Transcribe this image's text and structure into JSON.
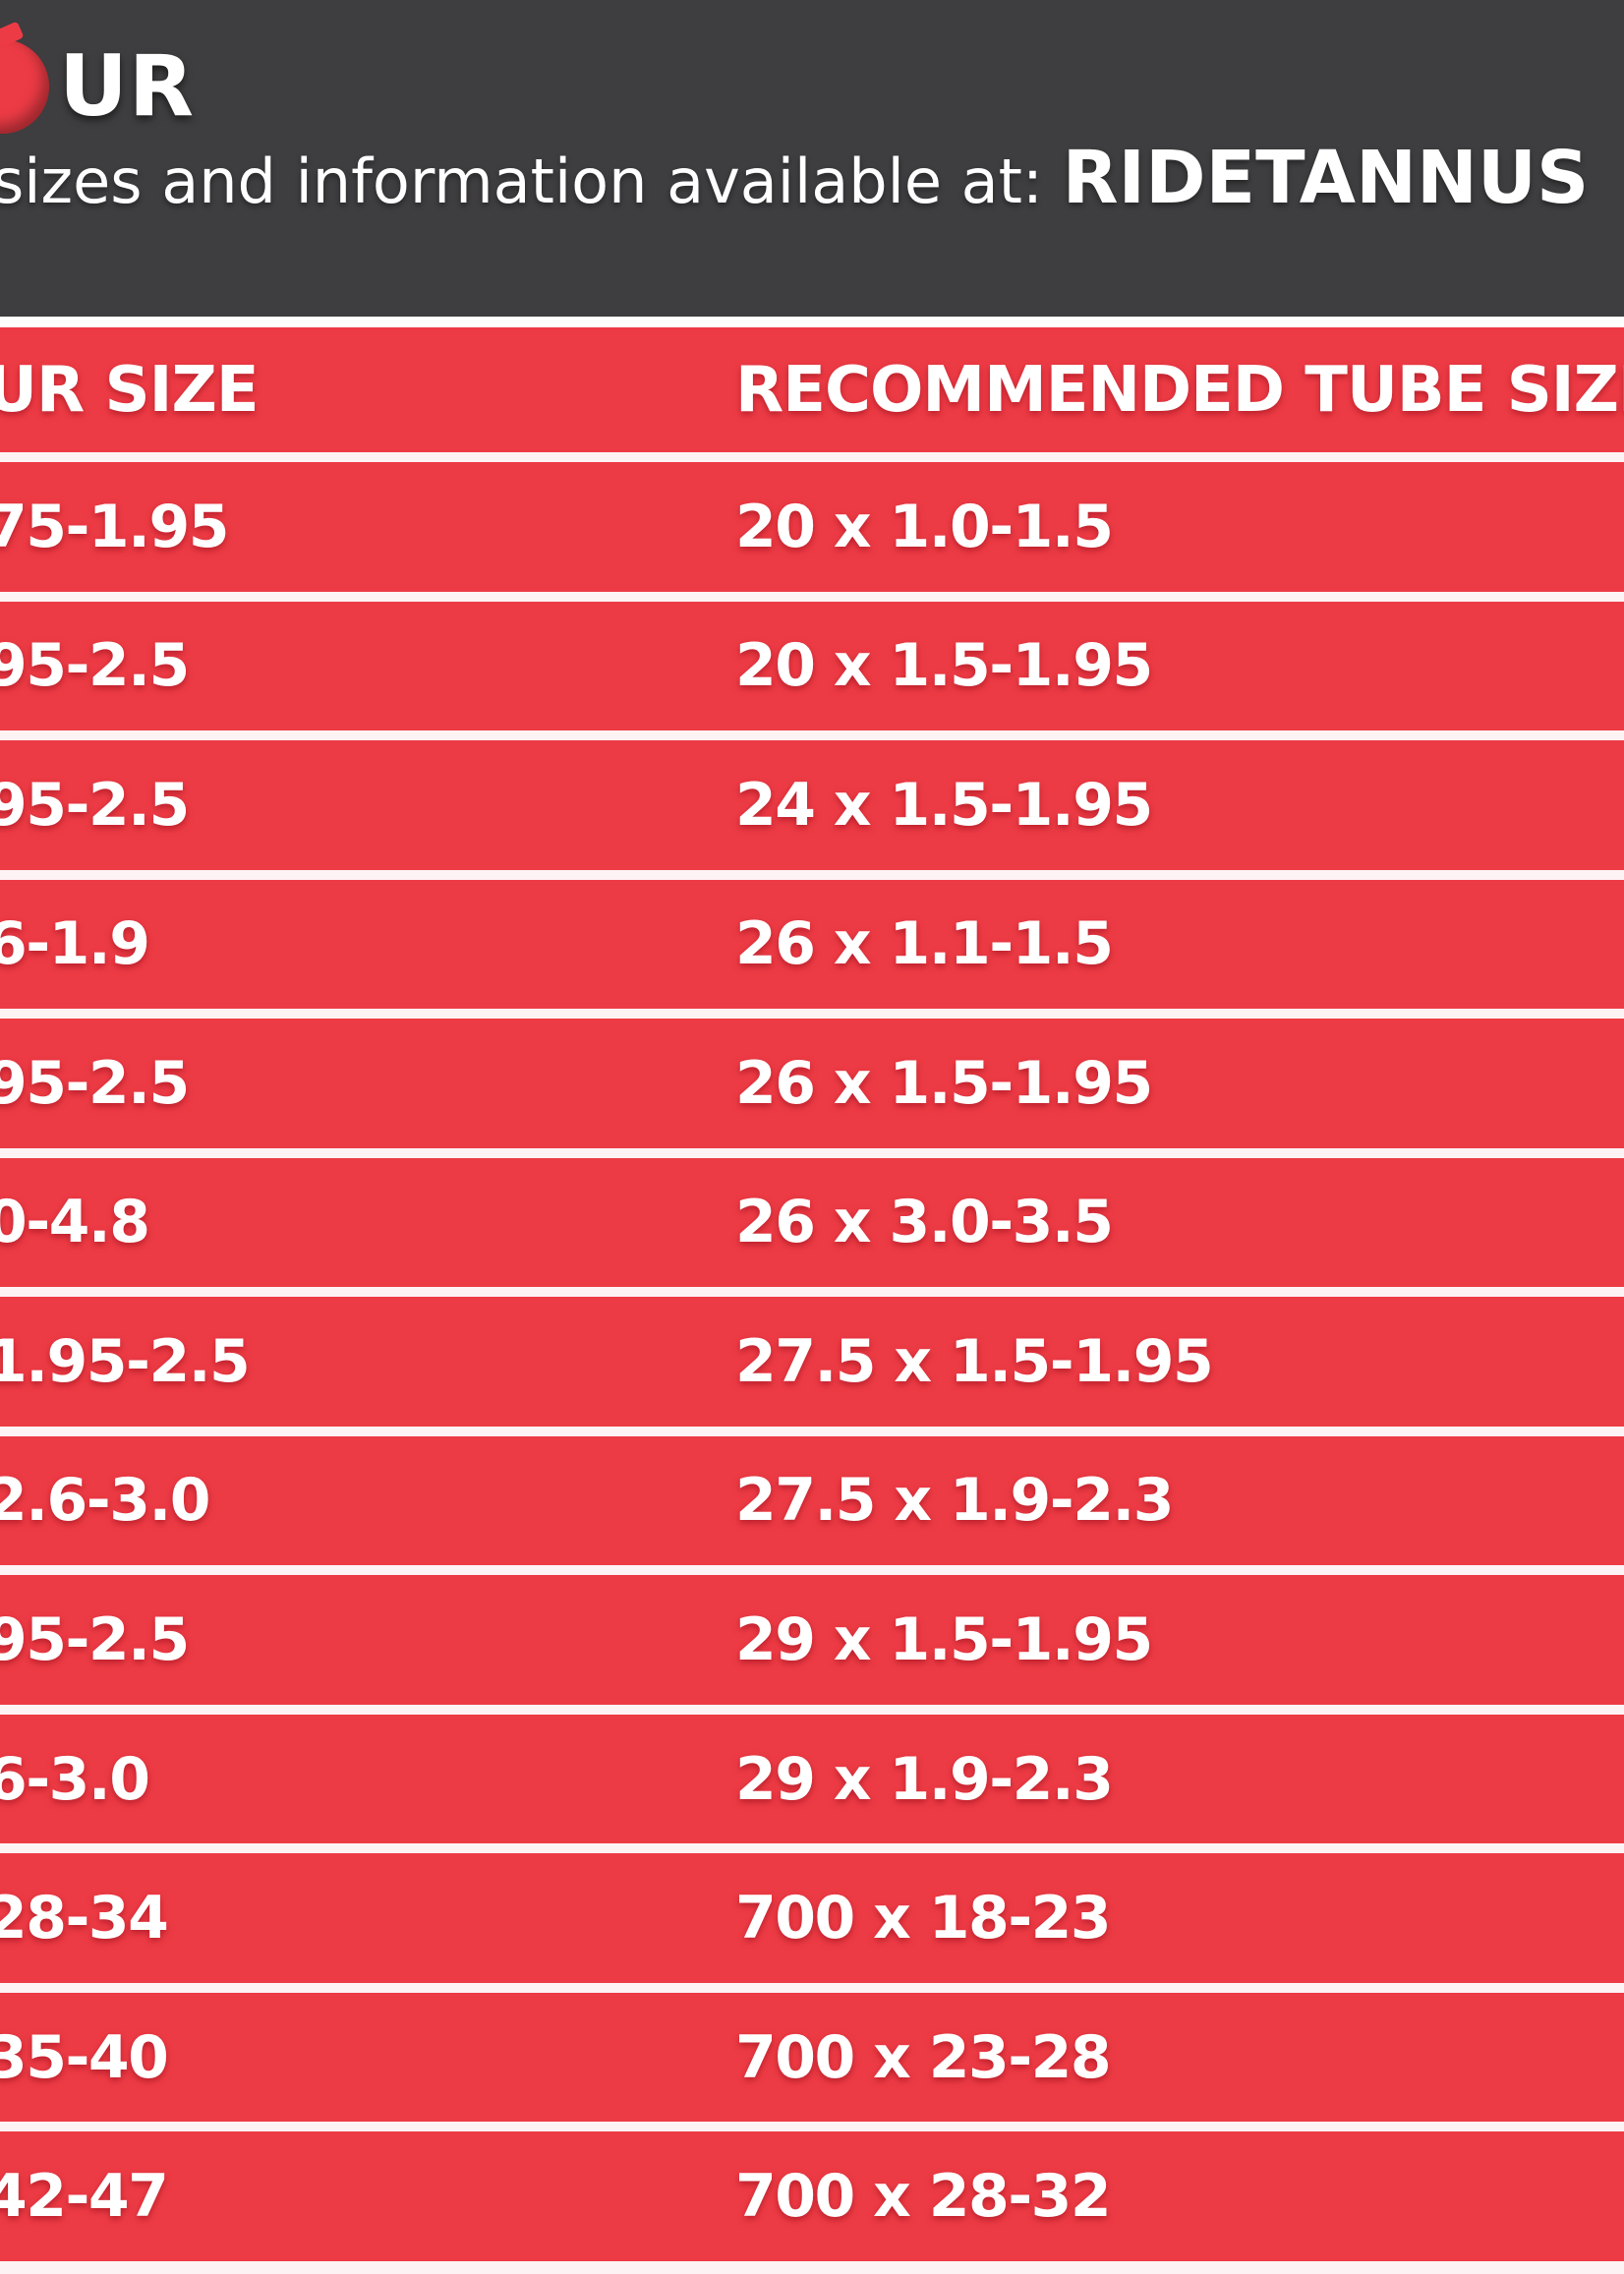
{
  "header": {
    "logo_fragment": "UR",
    "subtitle_prefix": "sizes and information available at: ",
    "subtitle_brand": "RIDETANNUS"
  },
  "table": {
    "columns": {
      "size_label": "UR SIZE",
      "tube_label": "RECOMMENDED TUBE SIZE"
    },
    "rows": [
      {
        "size": "75-1.95",
        "tube": "20 x 1.0-1.5"
      },
      {
        "size": "95-2.5",
        "tube": "20 x 1.5-1.95"
      },
      {
        "size": "95-2.5",
        "tube": "24 x 1.5-1.95"
      },
      {
        "size": "6-1.9",
        "tube": "26 x 1.1-1.5"
      },
      {
        "size": "95-2.5",
        "tube": "26 x 1.5-1.95"
      },
      {
        "size": "0-4.8",
        "tube": "26 x 3.0-3.5"
      },
      {
        "size": "1.95-2.5",
        "tube": "27.5 x 1.5-1.95"
      },
      {
        "size": "2.6-3.0",
        "tube": "27.5 x 1.9-2.3"
      },
      {
        "size": "95-2.5",
        "tube": "29 x 1.5-1.95"
      },
      {
        "size": "6-3.0",
        "tube": "29 x 1.9-2.3"
      },
      {
        "size": "28-34",
        "tube": "700 x 18-23"
      },
      {
        "size": "35-40",
        "tube": "700 x 23-28"
      },
      {
        "size": "42-47",
        "tube": "700 x 28-32"
      }
    ]
  },
  "chart_data": {
    "type": "table",
    "title": "sizes and information available at: RIDETANNUS",
    "columns": [
      "UR SIZE",
      "RECOMMENDED TUBE SIZE"
    ],
    "rows": [
      [
        "75-1.95",
        "20 x 1.0-1.5"
      ],
      [
        "95-2.5",
        "20 x 1.5-1.95"
      ],
      [
        "95-2.5",
        "24 x 1.5-1.95"
      ],
      [
        "6-1.9",
        "26 x 1.1-1.5"
      ],
      [
        "95-2.5",
        "26 x 1.5-1.95"
      ],
      [
        "0-4.8",
        "26 x 3.0-3.5"
      ],
      [
        "1.95-2.5",
        "27.5 x 1.5-1.95"
      ],
      [
        "2.6-3.0",
        "27.5 x 1.9-2.3"
      ],
      [
        "95-2.5",
        "29 x 1.5-1.95"
      ],
      [
        "6-3.0",
        "29 x 1.9-2.3"
      ],
      [
        "28-34",
        "700 x 18-23"
      ],
      [
        "35-40",
        "700 x 23-28"
      ],
      [
        "42-47",
        "700 x 28-32"
      ]
    ]
  },
  "colors": {
    "red": "#ED3B45",
    "dark": "#3E3D3F",
    "separator": "#FDF3F5",
    "text": "#FFFFFF"
  }
}
